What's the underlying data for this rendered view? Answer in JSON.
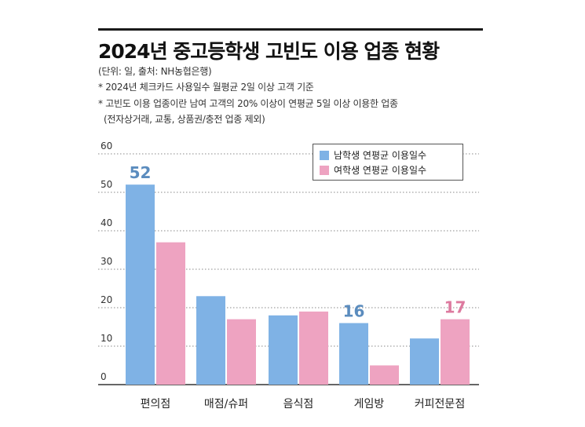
{
  "title": "2024년 중고등학생 고빈도 이용 업종 현황",
  "notes": [
    "(단위: 일, 출처: NH농협은행)",
    "* 2024년 체크카드 사용일수 월평균 2일 이상 고객 기준",
    "* 고빈도 이용 업종이란 남여 고객의 20% 이상이 연평균 5일 이상 이용한 업종",
    "  (전자상거래, 교통, 상품권/충전 업종 제외)"
  ],
  "colors": {
    "male": "#7fb2e5",
    "female": "#eea3c1",
    "male_label": "#5b8cbe",
    "female_label": "#dd7a9f"
  },
  "chart_data": {
    "type": "bar",
    "title": "2024년 중고등학생 고빈도 이용 업종 현황",
    "xlabel": "",
    "ylabel": "",
    "ylim": [
      0,
      60
    ],
    "yticks": [
      "0",
      "10",
      "20",
      "30",
      "40",
      "50",
      "60"
    ],
    "grid": true,
    "legend_position": "top-right",
    "categories": [
      "편의점",
      "매점/슈퍼",
      "음식점",
      "게임방",
      "커피전문점"
    ],
    "series": [
      {
        "name": "남학생 연평균 이용일수",
        "values": [
          52,
          23,
          18,
          16,
          12
        ]
      },
      {
        "name": "여학생 연평균 이용일수",
        "values": [
          37,
          17,
          19,
          5,
          17
        ]
      }
    ],
    "data_labels": [
      {
        "series": 0,
        "category": 0,
        "text": "52"
      },
      {
        "series": 0,
        "category": 3,
        "text": "16"
      },
      {
        "series": 1,
        "category": 4,
        "text": "17"
      }
    ]
  }
}
